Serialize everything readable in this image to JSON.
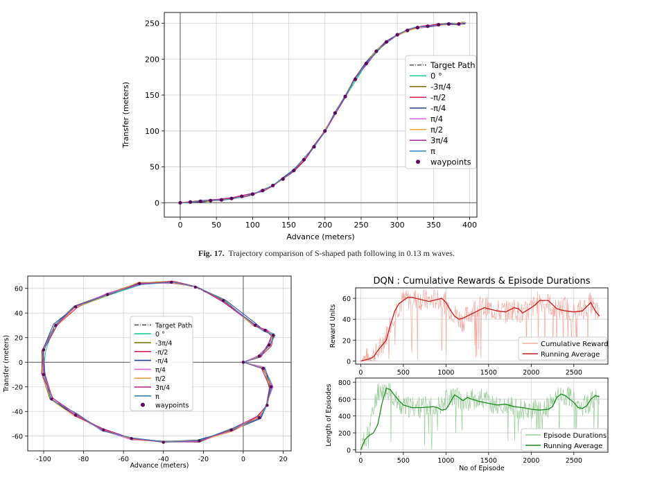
{
  "caption": {
    "label": "Fig. 17",
    "sep": ".",
    "text": "Trajectory comparison of S-shaped path following in 0.13 m waves."
  },
  "colors": {
    "target": "#555555",
    "c0": "#1ecf8c",
    "c_m3pi4": "#7a6a00",
    "c_mpi2": "#d62050",
    "c_mpi4": "#1f3f8f",
    "c_pi4": "#e060e0",
    "c_pi2": "#f0a040",
    "c_3pi4": "#b0208f",
    "c_pi": "#3a80c0",
    "waypoint": "#5a0a5a",
    "reward": "#f6a8a0",
    "reward_avg": "#c81818",
    "dur": "#9acd9a",
    "dur_avg": "#1a8a1a"
  },
  "legend_entries": [
    "Target Path",
    "0 °",
    "-3π/4",
    "-π/2",
    "-π/4",
    "π/4",
    "π/2",
    "3π/4",
    "π",
    "waypoints"
  ],
  "chart_data": [
    {
      "type": "line",
      "title": "",
      "xlabel": "Advance  (meters)",
      "ylabel": "Transfer  (meters)",
      "xlim": [
        -22,
        410
      ],
      "ylim": [
        -20,
        265
      ],
      "xticks": [
        0,
        50,
        100,
        150,
        200,
        250,
        300,
        350,
        400
      ],
      "yticks": [
        0,
        50,
        100,
        150,
        200,
        250
      ],
      "grid": true,
      "legend": "center-right",
      "waypoints": {
        "x": [
          0,
          14,
          28,
          42,
          57,
          71,
          85,
          100,
          114,
          128,
          142,
          157,
          171,
          185,
          200,
          214,
          228,
          242,
          257,
          271,
          285,
          300,
          314,
          328,
          342,
          357,
          371,
          385
        ],
        "y": [
          0,
          1,
          2,
          3,
          4,
          6,
          9,
          12,
          17,
          24,
          33,
          45,
          60,
          78,
          100,
          125,
          148,
          172,
          194,
          211,
          224,
          234,
          240,
          244,
          246,
          248,
          249,
          249
        ]
      }
    },
    {
      "type": "line",
      "title": "",
      "xlabel": "Advance  (meters)",
      "ylabel": "Transfer  (meters)",
      "xlim": [
        -108,
        24
      ],
      "ylim": [
        -72,
        70
      ],
      "xticks": [
        -100,
        -80,
        -60,
        -40,
        -20,
        0,
        20
      ],
      "yticks": [
        -60,
        -40,
        -20,
        0,
        20,
        40,
        60
      ],
      "grid": true,
      "legend": "center",
      "waypoints": {
        "x": [
          0,
          8,
          13,
          15,
          11,
          6,
          -10,
          -24,
          -36,
          -52,
          -68,
          -84,
          -94,
          -100,
          -100,
          -96,
          -84,
          -70,
          -56,
          -40,
          -22,
          -6,
          8,
          12,
          14,
          10
        ],
        "y": [
          0,
          5,
          14,
          22,
          26,
          30,
          50,
          61,
          65,
          64,
          55,
          45,
          30,
          10,
          -10,
          -30,
          -43,
          -55,
          -62,
          -65,
          -64,
          -55,
          -45,
          -35,
          -20,
          -5
        ]
      }
    },
    {
      "type": "line",
      "title": "DQN : Cumulative Rewards & Episode Durations",
      "xlabel": "",
      "ylabel": "Reward Units",
      "xlim": [
        -60,
        2900
      ],
      "ylim": [
        -3,
        70
      ],
      "xticks": [
        0,
        500,
        1000,
        1500,
        2000,
        2500
      ],
      "yticks": [
        0,
        20,
        40,
        60
      ],
      "grid": true,
      "legend": "lower-right",
      "series": [
        {
          "name": "Cumulative Reward",
          "x": [
            0,
            100,
            200,
            300,
            400,
            500,
            600,
            700,
            800,
            900,
            1000,
            1100,
            1200,
            1300,
            1400,
            1500,
            1600,
            1700,
            1800,
            1900,
            2000,
            2100,
            2200,
            2300,
            2400,
            2500,
            2600,
            2700,
            2800
          ],
          "values": [
            0,
            3,
            8,
            25,
            48,
            58,
            60,
            59,
            57,
            60,
            55,
            45,
            38,
            48,
            52,
            50,
            48,
            47,
            50,
            45,
            50,
            58,
            55,
            48,
            52,
            45,
            50,
            55,
            42
          ]
        },
        {
          "name": "Running Average",
          "x": [
            0,
            100,
            150,
            200,
            250,
            300,
            350,
            400,
            450,
            500,
            550,
            600,
            700,
            800,
            900,
            950,
            1000,
            1050,
            1100,
            1150,
            1200,
            1300,
            1400,
            1450,
            1500,
            1600,
            1700,
            1800,
            1850,
            1900,
            2000,
            2050,
            2100,
            2200,
            2300,
            2400,
            2500,
            2600,
            2700,
            2750,
            2800
          ],
          "values": [
            0,
            2,
            4,
            10,
            15,
            20,
            35,
            48,
            55,
            58,
            61,
            61,
            59,
            57,
            59,
            60,
            56,
            49,
            43,
            40,
            41,
            45,
            49,
            51,
            50,
            48,
            47,
            51,
            50,
            46,
            51,
            54,
            58,
            58,
            50,
            48,
            47,
            48,
            56,
            48,
            43
          ]
        }
      ]
    },
    {
      "type": "line",
      "title": "",
      "xlabel": "No of Episode",
      "ylabel": "Length of Episodes",
      "xlim": [
        -60,
        2900
      ],
      "ylim": [
        -30,
        850
      ],
      "xticks": [
        0,
        500,
        1000,
        1500,
        2000,
        2500
      ],
      "yticks": [
        0,
        200,
        400,
        600,
        800
      ],
      "grid": true,
      "legend": "lower-right",
      "series": [
        {
          "name": "Episode Durations",
          "x": [
            0,
            100,
            200,
            300,
            400,
            500,
            600,
            700,
            800,
            900,
            1000,
            1100,
            1200,
            1300,
            1400,
            1500,
            1600,
            1700,
            1800,
            1900,
            2000,
            2100,
            2200,
            2300,
            2400,
            2500,
            2600,
            2700,
            2800
          ],
          "values": [
            0,
            250,
            700,
            720,
            600,
            500,
            510,
            505,
            500,
            520,
            600,
            650,
            560,
            600,
            620,
            560,
            520,
            510,
            500,
            480,
            470,
            460,
            500,
            620,
            650,
            600,
            520,
            560,
            640
          ]
        },
        {
          "name": "Running Average",
          "x": [
            0,
            50,
            100,
            150,
            200,
            250,
            300,
            350,
            400,
            450,
            500,
            600,
            700,
            800,
            850,
            900,
            950,
            1000,
            1050,
            1100,
            1150,
            1200,
            1250,
            1300,
            1400,
            1500,
            1600,
            1700,
            1800,
            1900,
            2000,
            2100,
            2200,
            2250,
            2300,
            2350,
            2400,
            2450,
            2500,
            2550,
            2600,
            2650,
            2700,
            2750,
            2800
          ],
          "values": [
            0,
            120,
            170,
            200,
            300,
            550,
            730,
            710,
            640,
            580,
            530,
            500,
            500,
            505,
            510,
            500,
            470,
            480,
            560,
            650,
            620,
            580,
            620,
            600,
            570,
            550,
            530,
            540,
            510,
            500,
            480,
            470,
            480,
            510,
            620,
            660,
            640,
            600,
            560,
            500,
            490,
            520,
            600,
            640,
            630
          ]
        }
      ]
    }
  ]
}
